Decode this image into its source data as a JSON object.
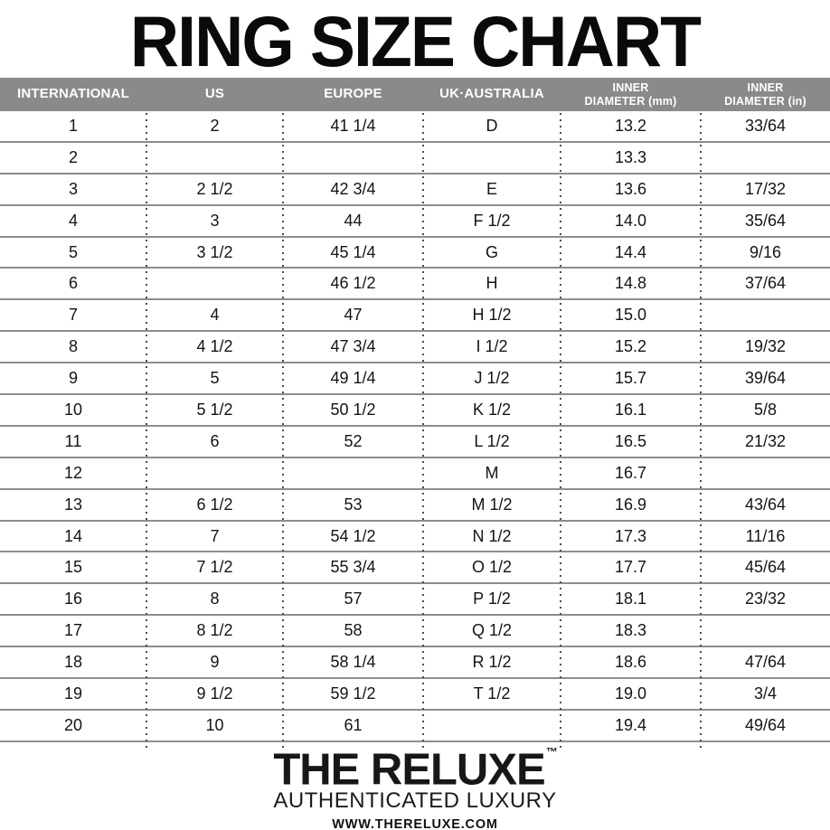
{
  "title": "RING SIZE CHART",
  "chart_data": {
    "type": "table",
    "title": "RING SIZE CHART",
    "columns": [
      "INTERNATIONAL",
      "US",
      "EUROPE",
      "UK·AUSTRALIA",
      "INNER DIAMETER (mm)",
      "INNER DIAMETER (in)"
    ],
    "header_lines": [
      [
        "INTERNATIONAL"
      ],
      [
        "US"
      ],
      [
        "EUROPE"
      ],
      [
        "UK·AUSTRALIA"
      ],
      [
        "INNER",
        "DIAMETER (mm)"
      ],
      [
        "INNER",
        "DIAMETER (in)"
      ]
    ],
    "rows": [
      [
        "1",
        "2",
        "41 1/4",
        "D",
        "13.2",
        "33/64"
      ],
      [
        "2",
        "",
        "",
        "",
        "13.3",
        ""
      ],
      [
        "3",
        "2 1/2",
        "42 3/4",
        "E",
        "13.6",
        "17/32"
      ],
      [
        "4",
        "3",
        "44",
        "F 1/2",
        "14.0",
        "35/64"
      ],
      [
        "5",
        "3 1/2",
        "45 1/4",
        "G",
        "14.4",
        "9/16"
      ],
      [
        "6",
        "",
        "46 1/2",
        "H",
        "14.8",
        "37/64"
      ],
      [
        "7",
        "4",
        "47",
        "H 1/2",
        "15.0",
        ""
      ],
      [
        "8",
        "4 1/2",
        "47 3/4",
        "I 1/2",
        "15.2",
        "19/32"
      ],
      [
        "9",
        "5",
        "49 1/4",
        "J 1/2",
        "15.7",
        "39/64"
      ],
      [
        "10",
        "5 1/2",
        "50 1/2",
        "K 1/2",
        "16.1",
        "5/8"
      ],
      [
        "11",
        "6",
        "52",
        "L 1/2",
        "16.5",
        "21/32"
      ],
      [
        "12",
        "",
        "",
        "M",
        "16.7",
        ""
      ],
      [
        "13",
        "6 1/2",
        "53",
        "M 1/2",
        "16.9",
        "43/64"
      ],
      [
        "14",
        "7",
        "54 1/2",
        "N 1/2",
        "17.3",
        "11/16"
      ],
      [
        "15",
        "7 1/2",
        "55 3/4",
        "O 1/2",
        "17.7",
        "45/64"
      ],
      [
        "16",
        "8",
        "57",
        "P 1/2",
        "18.1",
        "23/32"
      ],
      [
        "17",
        "8 1/2",
        "58",
        "Q 1/2",
        "18.3",
        ""
      ],
      [
        "18",
        "9",
        "58 1/4",
        "R 1/2",
        "18.6",
        "47/64"
      ],
      [
        "19",
        "9 1/2",
        "59 1/2",
        "T 1/2",
        "19.0",
        "3/4"
      ],
      [
        "20",
        "10",
        "61",
        "",
        "19.4",
        "49/64"
      ]
    ]
  },
  "footer": {
    "brand": "THE RELUXE",
    "trademark": "™",
    "tagline": "AUTHENTICATED LUXURY",
    "website": "WWW.THERELUXE.COM"
  },
  "colors": {
    "header_bg": "#8a8a8a",
    "header_text": "#ffffff",
    "row_line": "#8d8d8d",
    "dotted_separator": "#4d4d4d",
    "text": "#141414",
    "title": "#0a0a0a"
  }
}
